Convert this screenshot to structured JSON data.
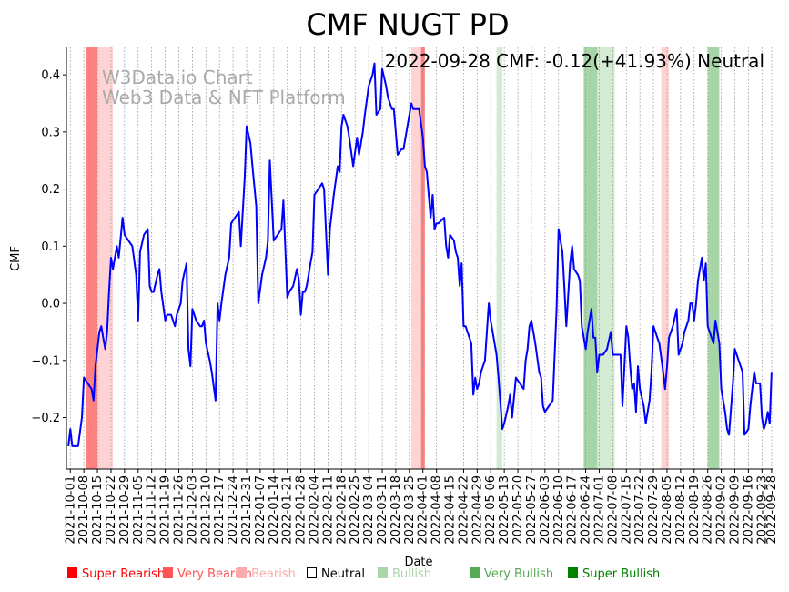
{
  "chart_data": {
    "type": "line",
    "title": "CMF NUGT PD",
    "annotation": "2022-09-28 CMF: -0.12(+41.93%) Neutral",
    "watermark": [
      "W3Data.io Chart",
      "Web3 Data & NFT Platform"
    ],
    "xlabel": "Date",
    "ylabel": "CMF",
    "x_start_date": "2021-10-01",
    "x_unit": "days since 2021-10-01",
    "xlim": [
      -2,
      362.5
    ],
    "ylim": [
      -0.29,
      0.448
    ],
    "yticks": [
      -0.2,
      -0.1,
      0.0,
      0.1,
      0.2,
      0.3,
      0.4
    ],
    "ytick_labels": [
      "−0.2",
      "−0.1",
      "0.0",
      "0.1",
      "0.2",
      "0.3",
      "0.4"
    ],
    "xticks_days": [
      0,
      7,
      14,
      21,
      28,
      35,
      42,
      49,
      56,
      63,
      70,
      77,
      84,
      91,
      98,
      105,
      112,
      119,
      126,
      133,
      140,
      147,
      154,
      161,
      168,
      175,
      182,
      189,
      196,
      203,
      210,
      217,
      224,
      231,
      238,
      245,
      252,
      259,
      266,
      273,
      280,
      287,
      294,
      301,
      308,
      315,
      322,
      329,
      336,
      343,
      350,
      357,
      362
    ],
    "xtick_labels": [
      "2021-10-01",
      "2021-10-08",
      "2021-10-15",
      "2021-10-22",
      "2021-10-29",
      "2021-11-05",
      "2021-11-12",
      "2021-11-19",
      "2021-11-26",
      "2021-12-03",
      "2021-12-10",
      "2021-12-17",
      "2021-12-24",
      "2021-12-31",
      "2022-01-07",
      "2022-01-14",
      "2022-01-21",
      "2022-01-28",
      "2022-02-04",
      "2022-02-11",
      "2022-02-18",
      "2022-02-25",
      "2022-03-04",
      "2022-03-11",
      "2022-03-18",
      "2022-03-25",
      "2022-04-01",
      "2022-04-08",
      "2022-04-15",
      "2022-04-22",
      "2022-04-29",
      "2022-05-06",
      "2022-05-13",
      "2022-05-20",
      "2022-05-27",
      "2022-06-03",
      "2022-06-10",
      "2022-06-17",
      "2022-06-24",
      "2022-07-01",
      "2022-07-08",
      "2022-07-15",
      "2022-07-22",
      "2022-07-29",
      "2022-08-05",
      "2022-08-12",
      "2022-08-19",
      "2022-08-26",
      "2022-09-02",
      "2022-09-09",
      "2022-09-16",
      "2022-09-23",
      "2022-09-28"
    ],
    "grid": "vertical dotted",
    "series": [
      {
        "name": "CMF",
        "color": "#0000ff",
        "points": [
          [
            -1,
            -0.25
          ],
          [
            0,
            -0.22
          ],
          [
            1,
            -0.25
          ],
          [
            4,
            -0.25
          ],
          [
            6,
            -0.2
          ],
          [
            7,
            -0.13
          ],
          [
            9,
            -0.14
          ],
          [
            11,
            -0.15
          ],
          [
            12,
            -0.17
          ],
          [
            13,
            -0.11
          ],
          [
            15,
            -0.05
          ],
          [
            16,
            -0.04
          ],
          [
            17,
            -0.06
          ],
          [
            18,
            -0.08
          ],
          [
            19,
            -0.05
          ],
          [
            20,
            0.02
          ],
          [
            21,
            0.08
          ],
          [
            22,
            0.06
          ],
          [
            24,
            0.1
          ],
          [
            25,
            0.08
          ],
          [
            27,
            0.15
          ],
          [
            28,
            0.12
          ],
          [
            30,
            0.11
          ],
          [
            32,
            0.1
          ],
          [
            34,
            0.05
          ],
          [
            35,
            -0.03
          ],
          [
            36,
            0.09
          ],
          [
            38,
            0.12
          ],
          [
            40,
            0.13
          ],
          [
            41,
            0.03
          ],
          [
            42,
            0.02
          ],
          [
            43,
            0.02
          ],
          [
            45,
            0.05
          ],
          [
            46,
            0.06
          ],
          [
            47,
            0.02
          ],
          [
            49,
            -0.03
          ],
          [
            50,
            -0.02
          ],
          [
            52,
            -0.02
          ],
          [
            54,
            -0.04
          ],
          [
            55,
            -0.02
          ],
          [
            57,
            0.0
          ],
          [
            58,
            0.04
          ],
          [
            60,
            0.07
          ],
          [
            61,
            -0.08
          ],
          [
            62,
            -0.11
          ],
          [
            63,
            -0.01
          ],
          [
            65,
            -0.03
          ],
          [
            67,
            -0.04
          ],
          [
            68,
            -0.04
          ],
          [
            69,
            -0.03
          ],
          [
            70,
            -0.07
          ],
          [
            72,
            -0.1
          ],
          [
            73,
            -0.12
          ],
          [
            75,
            -0.17
          ],
          [
            76,
            0.0
          ],
          [
            77,
            -0.03
          ],
          [
            78,
            0.0
          ],
          [
            80,
            0.05
          ],
          [
            82,
            0.08
          ],
          [
            83,
            0.14
          ],
          [
            85,
            0.15
          ],
          [
            87,
            0.16
          ],
          [
            88,
            0.1
          ],
          [
            90,
            0.22
          ],
          [
            91,
            0.31
          ],
          [
            93,
            0.28
          ],
          [
            94,
            0.24
          ],
          [
            96,
            0.17
          ],
          [
            97,
            0.0
          ],
          [
            99,
            0.05
          ],
          [
            101,
            0.08
          ],
          [
            102,
            0.11
          ],
          [
            103,
            0.25
          ],
          [
            105,
            0.11
          ],
          [
            107,
            0.12
          ],
          [
            109,
            0.13
          ],
          [
            110,
            0.18
          ],
          [
            112,
            0.01
          ],
          [
            113,
            0.02
          ],
          [
            115,
            0.03
          ],
          [
            117,
            0.06
          ],
          [
            118,
            0.04
          ],
          [
            119,
            -0.02
          ],
          [
            120,
            0.02
          ],
          [
            121,
            0.02
          ],
          [
            122,
            0.03
          ],
          [
            124,
            0.07
          ],
          [
            125,
            0.09
          ],
          [
            126,
            0.19
          ],
          [
            128,
            0.2
          ],
          [
            130,
            0.21
          ],
          [
            131,
            0.2
          ],
          [
            133,
            0.05
          ],
          [
            134,
            0.13
          ],
          [
            135,
            0.16
          ],
          [
            136,
            0.19
          ],
          [
            138,
            0.24
          ],
          [
            139,
            0.23
          ],
          [
            140,
            0.31
          ],
          [
            141,
            0.33
          ],
          [
            143,
            0.31
          ],
          [
            144,
            0.29
          ],
          [
            146,
            0.24
          ],
          [
            148,
            0.29
          ],
          [
            149,
            0.26
          ],
          [
            151,
            0.3
          ],
          [
            152,
            0.33
          ],
          [
            154,
            0.38
          ],
          [
            156,
            0.4
          ],
          [
            157,
            0.42
          ],
          [
            158,
            0.33
          ],
          [
            160,
            0.34
          ],
          [
            161,
            0.41
          ],
          [
            163,
            0.38
          ],
          [
            164,
            0.36
          ],
          [
            166,
            0.34
          ],
          [
            167,
            0.34
          ],
          [
            169,
            0.26
          ],
          [
            171,
            0.27
          ],
          [
            172,
            0.27
          ],
          [
            174,
            0.31
          ],
          [
            176,
            0.35
          ],
          [
            177,
            0.34
          ],
          [
            179,
            0.34
          ],
          [
            180,
            0.34
          ],
          [
            182,
            0.29
          ],
          [
            183,
            0.24
          ],
          [
            184,
            0.23
          ],
          [
            185,
            0.19
          ],
          [
            186,
            0.15
          ],
          [
            187,
            0.19
          ],
          [
            188,
            0.13
          ],
          [
            189,
            0.14
          ],
          [
            190,
            0.14
          ],
          [
            193,
            0.15
          ],
          [
            194,
            0.1
          ],
          [
            195,
            0.08
          ],
          [
            196,
            0.12
          ],
          [
            198,
            0.11
          ],
          [
            199,
            0.09
          ],
          [
            200,
            0.08
          ],
          [
            201,
            0.03
          ],
          [
            202,
            0.07
          ],
          [
            203,
            -0.04
          ],
          [
            204,
            -0.04
          ],
          [
            205,
            -0.05
          ],
          [
            207,
            -0.07
          ],
          [
            208,
            -0.16
          ],
          [
            209,
            -0.13
          ],
          [
            210,
            -0.15
          ],
          [
            211,
            -0.14
          ],
          [
            212,
            -0.12
          ],
          [
            214,
            -0.1
          ],
          [
            216,
            0.0
          ],
          [
            217,
            -0.03
          ],
          [
            219,
            -0.07
          ],
          [
            220,
            -0.09
          ],
          [
            221,
            -0.13
          ],
          [
            223,
            -0.22
          ],
          [
            224,
            -0.21
          ],
          [
            226,
            -0.18
          ],
          [
            227,
            -0.16
          ],
          [
            228,
            -0.2
          ],
          [
            230,
            -0.13
          ],
          [
            232,
            -0.14
          ],
          [
            234,
            -0.15
          ],
          [
            235,
            -0.1
          ],
          [
            236,
            -0.08
          ],
          [
            237,
            -0.04
          ],
          [
            238,
            -0.03
          ],
          [
            239,
            -0.05
          ],
          [
            240,
            -0.07
          ],
          [
            242,
            -0.12
          ],
          [
            243,
            -0.13
          ],
          [
            244,
            -0.18
          ],
          [
            245,
            -0.19
          ],
          [
            247,
            -0.18
          ],
          [
            249,
            -0.17
          ],
          [
            250,
            -0.09
          ],
          [
            251,
            -0.01
          ],
          [
            252,
            0.13
          ],
          [
            254,
            0.09
          ],
          [
            255,
            0.03
          ],
          [
            256,
            -0.04
          ],
          [
            258,
            0.07
          ],
          [
            259,
            0.1
          ],
          [
            260,
            0.06
          ],
          [
            262,
            0.05
          ],
          [
            263,
            0.04
          ],
          [
            264,
            -0.04
          ],
          [
            266,
            -0.08
          ],
          [
            267,
            -0.05
          ],
          [
            268,
            -0.03
          ],
          [
            269,
            -0.01
          ],
          [
            270,
            -0.06
          ],
          [
            271,
            -0.06
          ],
          [
            272,
            -0.12
          ],
          [
            273,
            -0.09
          ],
          [
            275,
            -0.09
          ],
          [
            277,
            -0.08
          ],
          [
            279,
            -0.05
          ],
          [
            280,
            -0.09
          ],
          [
            282,
            -0.09
          ],
          [
            284,
            -0.09
          ],
          [
            285,
            -0.18
          ],
          [
            287,
            -0.04
          ],
          [
            288,
            -0.06
          ],
          [
            289,
            -0.11
          ],
          [
            290,
            -0.15
          ],
          [
            291,
            -0.14
          ],
          [
            292,
            -0.19
          ],
          [
            293,
            -0.11
          ],
          [
            294,
            -0.15
          ],
          [
            296,
            -0.18
          ],
          [
            297,
            -0.21
          ],
          [
            299,
            -0.17
          ],
          [
            300,
            -0.12
          ],
          [
            301,
            -0.04
          ],
          [
            303,
            -0.06
          ],
          [
            304,
            -0.07
          ],
          [
            306,
            -0.12
          ],
          [
            307,
            -0.15
          ],
          [
            308,
            -0.11
          ],
          [
            309,
            -0.06
          ],
          [
            311,
            -0.04
          ],
          [
            313,
            -0.01
          ],
          [
            314,
            -0.09
          ],
          [
            316,
            -0.07
          ],
          [
            317,
            -0.05
          ],
          [
            319,
            -0.03
          ],
          [
            320,
            0.0
          ],
          [
            321,
            0.0
          ],
          [
            322,
            -0.03
          ],
          [
            323,
            0.0
          ],
          [
            324,
            0.04
          ],
          [
            326,
            0.08
          ],
          [
            327,
            0.04
          ],
          [
            328,
            0.07
          ],
          [
            329,
            -0.04
          ],
          [
            331,
            -0.06
          ],
          [
            332,
            -0.07
          ],
          [
            333,
            -0.03
          ],
          [
            335,
            -0.07
          ],
          [
            336,
            -0.15
          ],
          [
            338,
            -0.19
          ],
          [
            339,
            -0.22
          ],
          [
            340,
            -0.23
          ],
          [
            342,
            -0.14
          ],
          [
            343,
            -0.08
          ],
          [
            345,
            -0.1
          ],
          [
            347,
            -0.12
          ],
          [
            348,
            -0.23
          ],
          [
            350,
            -0.22
          ],
          [
            351,
            -0.18
          ],
          [
            352,
            -0.15
          ],
          [
            353,
            -0.12
          ],
          [
            354,
            -0.14
          ],
          [
            356,
            -0.14
          ],
          [
            357,
            -0.2
          ],
          [
            358,
            -0.22
          ],
          [
            359,
            -0.21
          ],
          [
            360,
            -0.19
          ],
          [
            361,
            -0.21
          ],
          [
            362,
            -0.12
          ]
        ]
      }
    ],
    "regions": [
      {
        "start": 8,
        "end": 14,
        "signal": "Very Bearish"
      },
      {
        "start": 14,
        "end": 22,
        "signal": "Bearish"
      },
      {
        "start": 176,
        "end": 181,
        "signal": "Bearish"
      },
      {
        "start": 181,
        "end": 183,
        "signal": "Very Bearish"
      },
      {
        "start": 220,
        "end": 223,
        "signal": "Bullish"
      },
      {
        "start": 265,
        "end": 272,
        "signal": "Very Bullish"
      },
      {
        "start": 272,
        "end": 281,
        "signal": "Bullish"
      },
      {
        "start": 305,
        "end": 309,
        "signal": "Bearish"
      },
      {
        "start": 329,
        "end": 335,
        "signal": "Very Bullish"
      }
    ],
    "region_colors": {
      "Very Bearish": "#ff8080",
      "Bearish": "#ffd3d3",
      "Bullish": "#d3ead3",
      "Very Bullish": "#a8d5a8"
    },
    "legend": [
      {
        "label": "Super Bearish",
        "color": "#ff0000",
        "text_color": "#ff0000"
      },
      {
        "label": "Very Bearish",
        "color": "#ff5555",
        "text_color": "#ff5555"
      },
      {
        "label": "Bearish",
        "color": "#ffaaaa",
        "text_color": "#ffaaaa"
      },
      {
        "label": "Neutral",
        "color": "none",
        "text_color": "#000000"
      },
      {
        "label": "Bullish",
        "color": "#aad4aa",
        "text_color": "#aad4aa"
      },
      {
        "label": "Very Bullish",
        "color": "#55aa55",
        "text_color": "#55aa55"
      },
      {
        "label": "Super Bullish",
        "color": "#008000",
        "text_color": "#008000"
      }
    ],
    "legend_position": "bottom"
  }
}
